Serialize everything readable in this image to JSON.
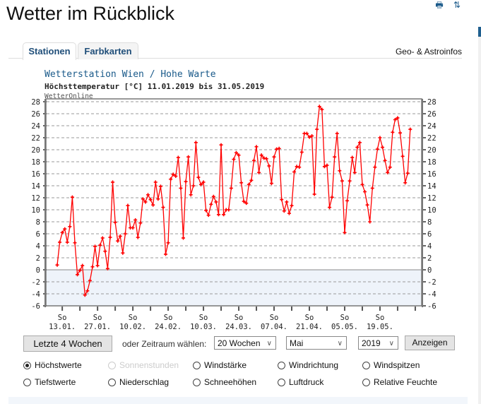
{
  "page": {
    "title": "Wetter im Rückblick",
    "print_icon": "print-icon",
    "refresh_icon": "refresh-icon"
  },
  "tabs": [
    {
      "label": "Stationen",
      "active": true
    },
    {
      "label": "Farbkarten",
      "active": false
    }
  ],
  "geo_link": "Geo- & Astroinfos",
  "chart_data": {
    "type": "line",
    "title": "Wetterstation Wien / Hohe Warte",
    "subtitle": "Höchsttemperatur [°C] 11.01.2019 bis 31.05.2019",
    "source": "WetterOnline",
    "ylabel": "°C",
    "xlabel": "",
    "ylim": [
      -6,
      28
    ],
    "yticks": [
      28,
      26,
      24,
      22,
      20,
      18,
      16,
      14,
      12,
      10,
      8,
      6,
      4,
      2,
      0,
      -2,
      -4,
      -6
    ],
    "x_start": "11.01.2019",
    "x_end": "31.05.2019",
    "xtick_labels": [
      {
        "day": "So",
        "date": "13.01."
      },
      {
        "day": "So",
        "date": "27.01."
      },
      {
        "day": "So",
        "date": "10.02."
      },
      {
        "day": "So",
        "date": "24.02."
      },
      {
        "day": "So",
        "date": "10.03."
      },
      {
        "day": "So",
        "date": "24.03."
      },
      {
        "day": "So",
        "date": "07.04."
      },
      {
        "day": "So",
        "date": "21.04."
      },
      {
        "day": "So",
        "date": "05.05."
      },
      {
        "day": "So",
        "date": "19.05."
      }
    ],
    "grid": true,
    "series": [
      {
        "name": "Höchstwerte",
        "color": "#ff0000",
        "values": [
          0.8,
          4.6,
          6.2,
          6.8,
          4.6,
          7.2,
          12.1,
          4.5,
          -0.8,
          -0.1,
          0.7,
          -4.2,
          -3.5,
          -1.8,
          0.5,
          3.9,
          0.7,
          4.1,
          5.3,
          3.1,
          0.2,
          5.4,
          14.6,
          7.9,
          4.8,
          5.6,
          2.8,
          6.0,
          10.7,
          7.0,
          7.0,
          8.3,
          5.4,
          7.8,
          11.8,
          11.3,
          12.5,
          11.7,
          10.8,
          14.6,
          11.8,
          13.9,
          10.4,
          2.6,
          4.5,
          15.1,
          15.9,
          15.6,
          18.7,
          13.6,
          5.3,
          14.7,
          18.8,
          12.5,
          14.0,
          21.2,
          15.4,
          14.2,
          14.6,
          9.9,
          9.1,
          10.9,
          12.2,
          11.3,
          9.2,
          20.8,
          9.2,
          10.0,
          10.0,
          13.6,
          18.4,
          19.5,
          19.1,
          14.5,
          11.4,
          11.1,
          14.2,
          14.9,
          18.2,
          20.5,
          16.2,
          19.1,
          18.6,
          18.5,
          17.3,
          14.4,
          18.8,
          20.1,
          20.2,
          11.7,
          9.8,
          11.3,
          9.4,
          10.7,
          16.3,
          17.2,
          17.1,
          19.6,
          22.7,
          22.7,
          22.1,
          22.3,
          12.6,
          23.4,
          27.2,
          26.7,
          17.2,
          17.4,
          10.4,
          12.1,
          18.8,
          22.7,
          16.5,
          14.8,
          6.2,
          11.5,
          14.8,
          18.7,
          16.2,
          20.4,
          21.2,
          14.2,
          13.0,
          10.8,
          8.0,
          13.6,
          17.1,
          20.1,
          22.0,
          20.4,
          18.2,
          16.2,
          17.1,
          22.9,
          25.0,
          25.3,
          22.8,
          18.9,
          14.5,
          16.1,
          23.4
        ]
      }
    ]
  },
  "controls": {
    "last4_button": "Letzte 4 Wochen",
    "period_label": "oder Zeitraum wählen:",
    "weeks_select": "20 Wochen",
    "month_select": "Mai",
    "year_select": "2019",
    "show_button": "Anzeigen",
    "chevron_icon": "chevron-down-icon"
  },
  "options": [
    {
      "label": "Höchstwerte",
      "checked": true,
      "disabled": false
    },
    {
      "label": "Sonnenstunden",
      "checked": false,
      "disabled": true
    },
    {
      "label": "Windstärke",
      "checked": false,
      "disabled": false
    },
    {
      "label": "Windrichtung",
      "checked": false,
      "disabled": false
    },
    {
      "label": "Windspitzen",
      "checked": false,
      "disabled": false
    },
    {
      "label": "Tiefstwerte",
      "checked": false,
      "disabled": false
    },
    {
      "label": "Niederschlag",
      "checked": false,
      "disabled": false
    },
    {
      "label": "Schneehöhen",
      "checked": false,
      "disabled": false
    },
    {
      "label": "Luftdruck",
      "checked": false,
      "disabled": false
    },
    {
      "label": "Relative Feuchte",
      "checked": false,
      "disabled": false
    }
  ]
}
